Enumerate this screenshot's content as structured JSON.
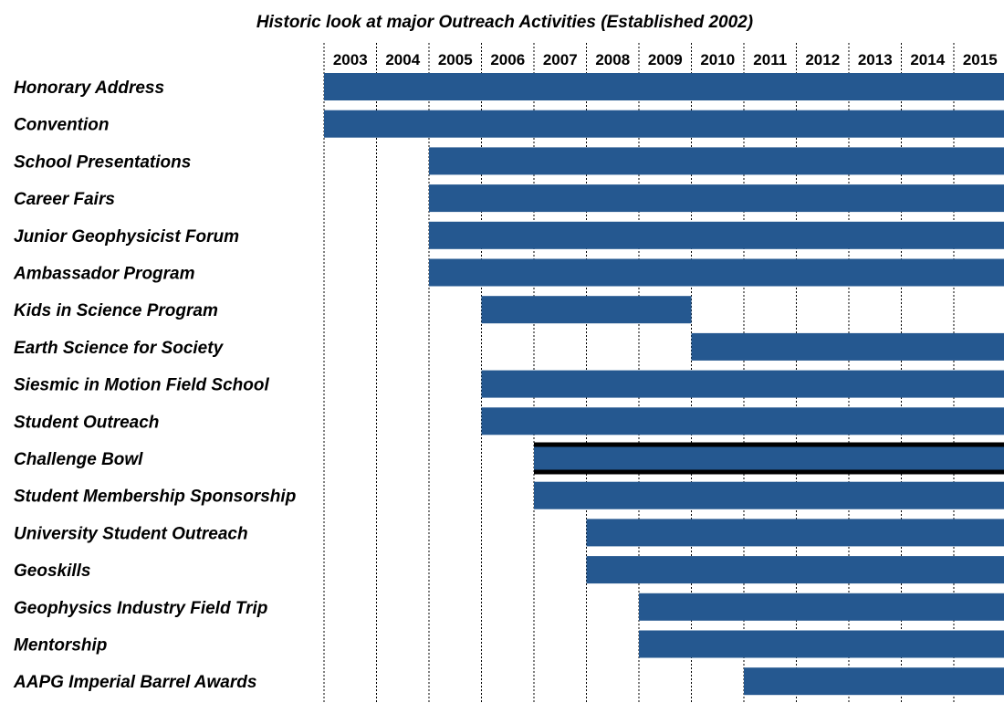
{
  "chart_data": {
    "type": "bar",
    "subtype": "timeline",
    "title": "Historic look at major Outreach Activities (Established 2002)",
    "years": [
      "2003",
      "2004",
      "2005",
      "2006",
      "2007",
      "2008",
      "2009",
      "2010",
      "2011",
      "2012",
      "2013",
      "2014",
      "2015"
    ],
    "grid": "vertical-dotted",
    "bar_color": "#255890",
    "activities": [
      {
        "label": "Honorary Address",
        "start": 2003,
        "end": 2015
      },
      {
        "label": "Convention",
        "start": 2003,
        "end": 2015
      },
      {
        "label": "School Presentations",
        "start": 2005,
        "end": 2015
      },
      {
        "label": "Career Fairs",
        "start": 2005,
        "end": 2015
      },
      {
        "label": "Junior Geophysicist Forum",
        "start": 2005,
        "end": 2015
      },
      {
        "label": "Ambassador Program",
        "start": 2005,
        "end": 2015
      },
      {
        "label": "Kids in Science Program",
        "start": 2006,
        "end": 2009
      },
      {
        "label": "Earth Science for Society",
        "start": 2010,
        "end": 2015
      },
      {
        "label": "Siesmic in Motion Field School",
        "start": 2006,
        "end": 2015
      },
      {
        "label": "Student Outreach",
        "start": 2006,
        "end": 2015
      },
      {
        "label": "Challenge Bowl",
        "start": 2007,
        "end": 2015,
        "outlined": true
      },
      {
        "label": "Student Membership Sponsorship",
        "start": 2007,
        "end": 2015
      },
      {
        "label": "University Student Outreach",
        "start": 2008,
        "end": 2015
      },
      {
        "label": "Geoskills",
        "start": 2008,
        "end": 2015
      },
      {
        "label": "Geophysics Industry Field Trip",
        "start": 2009,
        "end": 2015
      },
      {
        "label": "Mentorship",
        "start": 2009,
        "end": 2015
      },
      {
        "label": "AAPG Imperial Barrel Awards",
        "start": 2011,
        "end": 2015
      }
    ]
  }
}
